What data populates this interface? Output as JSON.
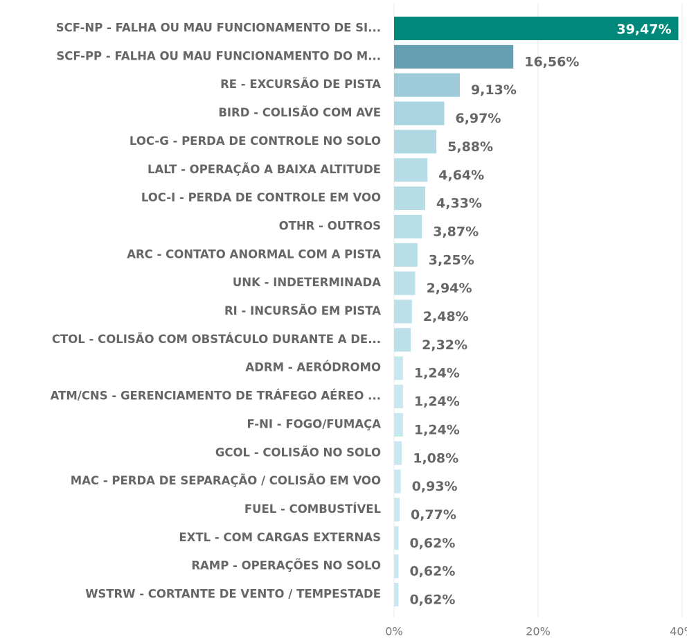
{
  "chart_data": {
    "type": "hbar",
    "categories": [
      "SCF-NP - FALHA OU MAU FUNCIONAMENTO DE SI...",
      "SCF-PP - FALHA OU MAU FUNCIONAMENTO DO M...",
      "RE - EXCURSÃO DE PISTA",
      "BIRD - COLISÃO COM AVE",
      "LOC-G - PERDA DE CONTROLE NO SOLO",
      "LALT - OPERAÇÃO A BAIXA ALTITUDE",
      "LOC-I - PERDA DE CONTROLE EM VOO",
      "OTHR - OUTROS",
      "ARC - CONTATO ANORMAL COM A PISTA",
      "UNK - INDETERMINADA",
      "RI - INCURSÃO EM PISTA",
      "CTOL - COLISÃO COM OBSTÁCULO DURANTE A DE...",
      "ADRM - AERÓDROMO",
      "ATM/CNS - GERENCIAMENTO DE TRÁFEGO AÉREO ...",
      "F-NI - FOGO/FUMAÇA",
      "GCOL - COLISÃO NO SOLO",
      "MAC - PERDA DE SEPARAÇÃO / COLISÃO EM VOO",
      "FUEL - COMBUSTÍVEL",
      "EXTL - COM CARGAS EXTERNAS",
      "RAMP - OPERAÇÕES NO SOLO",
      "WSTRW - CORTANTE DE VENTO / TEMPESTADE"
    ],
    "values": [
      39.47,
      16.56,
      9.13,
      6.97,
      5.88,
      4.64,
      4.33,
      3.87,
      3.25,
      2.94,
      2.48,
      2.32,
      1.24,
      1.24,
      1.24,
      1.08,
      0.93,
      0.77,
      0.62,
      0.62,
      0.62
    ],
    "value_labels": [
      "39,47%",
      "16,56%",
      "9,13%",
      "6,97%",
      "5,88%",
      "4,64%",
      "4,33%",
      "3,87%",
      "3,25%",
      "2,94%",
      "2,48%",
      "2,32%",
      "1,24%",
      "1,24%",
      "1,24%",
      "1,08%",
      "0,93%",
      "0,77%",
      "0,62%",
      "0,62%",
      "0,62%"
    ],
    "colors": [
      "#00897b",
      "#669fb2",
      "#9dcbd9",
      "#a9d4e0",
      "#b0d8e3",
      "#b6dce6",
      "#b6dce6",
      "#b8dee8",
      "#b8dee8",
      "#bce0ea",
      "#bce0ea",
      "#bce0ea",
      "#c8e8f0",
      "#c8e8f0",
      "#c8e8f0",
      "#c8e8f0",
      "#c8e8f0",
      "#c8e8f0",
      "#c8e8f0",
      "#c8e8f0",
      "#c8e8f0"
    ],
    "xlim": [
      0,
      40
    ],
    "xticks": [
      {
        "value": 0,
        "label": "0%"
      },
      {
        "value": 20,
        "label": "20%"
      },
      {
        "value": 40,
        "label": "40%"
      }
    ],
    "grid": true
  }
}
